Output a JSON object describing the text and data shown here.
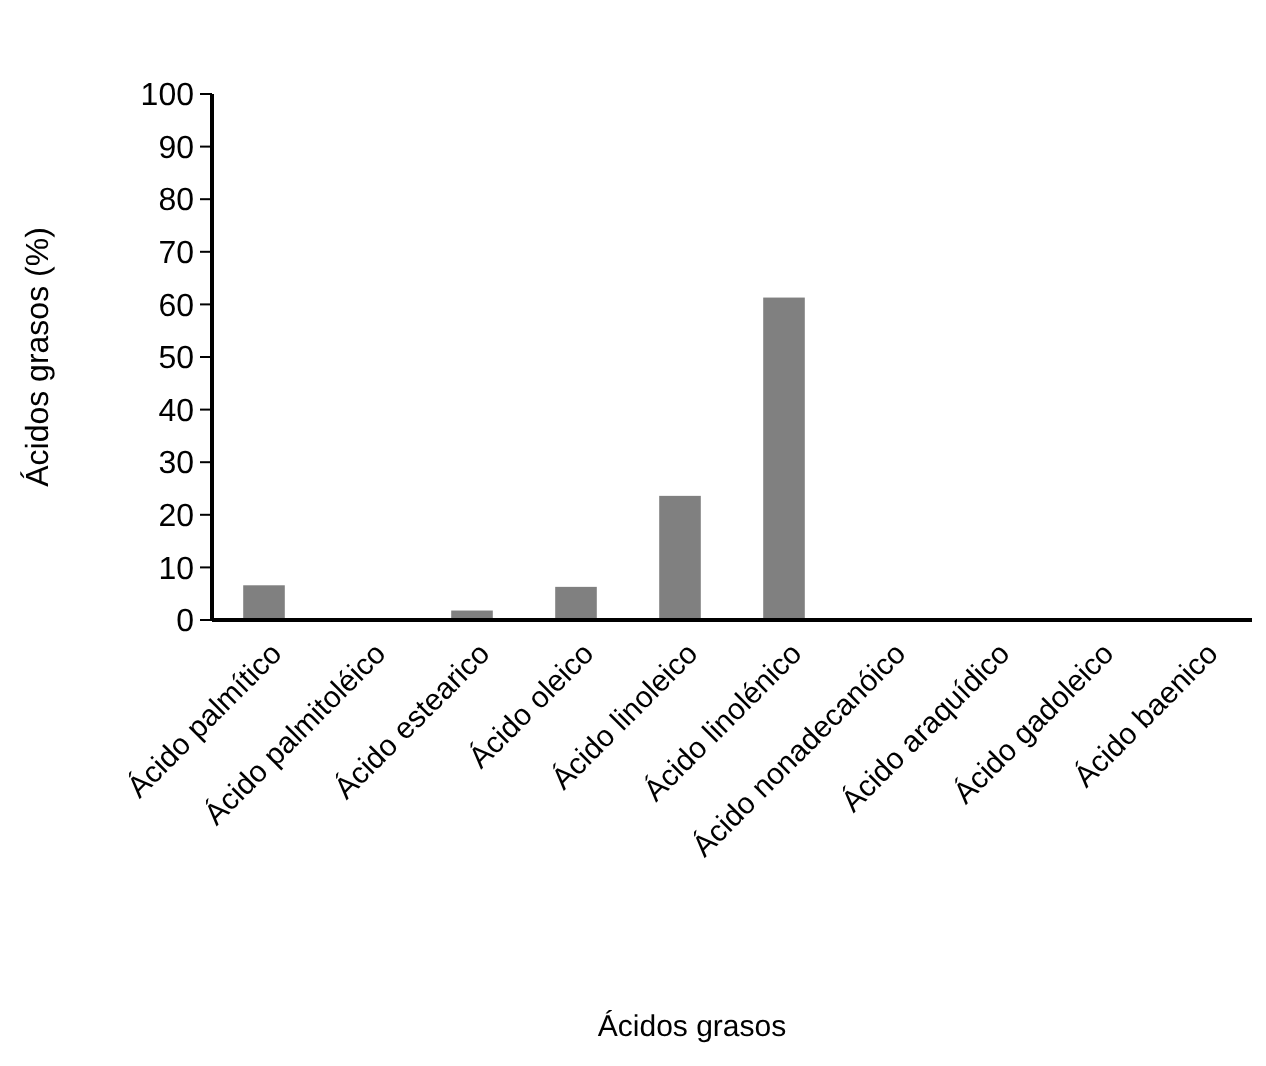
{
  "chart_data": {
    "type": "bar",
    "xlabel": "Ácidos grasos",
    "ylabel": "Ácidos grasos (%)",
    "categories": [
      "Ácido palmítico",
      "Ácido palmitoléico",
      "Ácido estearico",
      "Ácido oleico",
      "Ácido linoleico",
      "Ácido linolénico",
      "Ácido nonadecanóico",
      "Ácido araquídico",
      "Ácido gadoleico",
      "Ácido baenico"
    ],
    "values": [
      6.6,
      0,
      1.8,
      6.3,
      23.6,
      61.3,
      0,
      0,
      0,
      0
    ],
    "color": "#808080",
    "ylim": [
      0,
      100
    ],
    "yticks": [
      0,
      10,
      20,
      30,
      40,
      50,
      60,
      70,
      80,
      90,
      100
    ],
    "grid": false
  }
}
